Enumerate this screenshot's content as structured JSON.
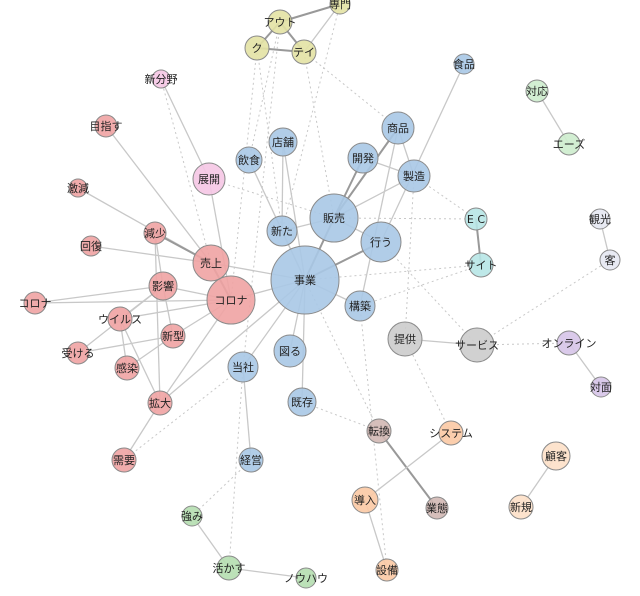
{
  "nodes": [
    {
      "label": "専門"
    },
    {
      "label": "アウト"
    },
    {
      "label": "ク"
    },
    {
      "label": "テイ"
    },
    {
      "label": "新分野"
    },
    {
      "label": "展開"
    },
    {
      "label": "目指す"
    },
    {
      "label": "激減"
    },
    {
      "label": "回復"
    },
    {
      "label": "減少"
    },
    {
      "label": "売上"
    },
    {
      "label": "影響"
    },
    {
      "label": "コロナ"
    },
    {
      "label": "コロナ"
    },
    {
      "label": "ウイルス"
    },
    {
      "label": "新型"
    },
    {
      "label": "受ける"
    },
    {
      "label": "感染"
    },
    {
      "label": "拡大"
    },
    {
      "label": "需要"
    },
    {
      "label": "飲食"
    },
    {
      "label": "店舗"
    },
    {
      "label": "開発"
    },
    {
      "label": "商品"
    },
    {
      "label": "製造"
    },
    {
      "label": "販売"
    },
    {
      "label": "新た"
    },
    {
      "label": "行う"
    },
    {
      "label": "事業"
    },
    {
      "label": "構築"
    },
    {
      "label": "図る"
    },
    {
      "label": "当社"
    },
    {
      "label": "既存"
    },
    {
      "label": "経営"
    },
    {
      "label": "食品"
    },
    {
      "label": "E C"
    },
    {
      "label": "サイト"
    },
    {
      "label": "提供"
    },
    {
      "label": "サービス"
    },
    {
      "label": "対応"
    },
    {
      "label": "エーズ"
    },
    {
      "label": "観光"
    },
    {
      "label": "客"
    },
    {
      "label": "オンライン"
    },
    {
      "label": "対面"
    },
    {
      "label": "転換"
    },
    {
      "label": "業態"
    },
    {
      "label": "システム"
    },
    {
      "label": "導入"
    },
    {
      "label": "設備"
    },
    {
      "label": "顧客"
    },
    {
      "label": "新規"
    },
    {
      "label": "強み"
    },
    {
      "label": "活かす"
    },
    {
      "label": "ノウハウ"
    }
  ]
}
